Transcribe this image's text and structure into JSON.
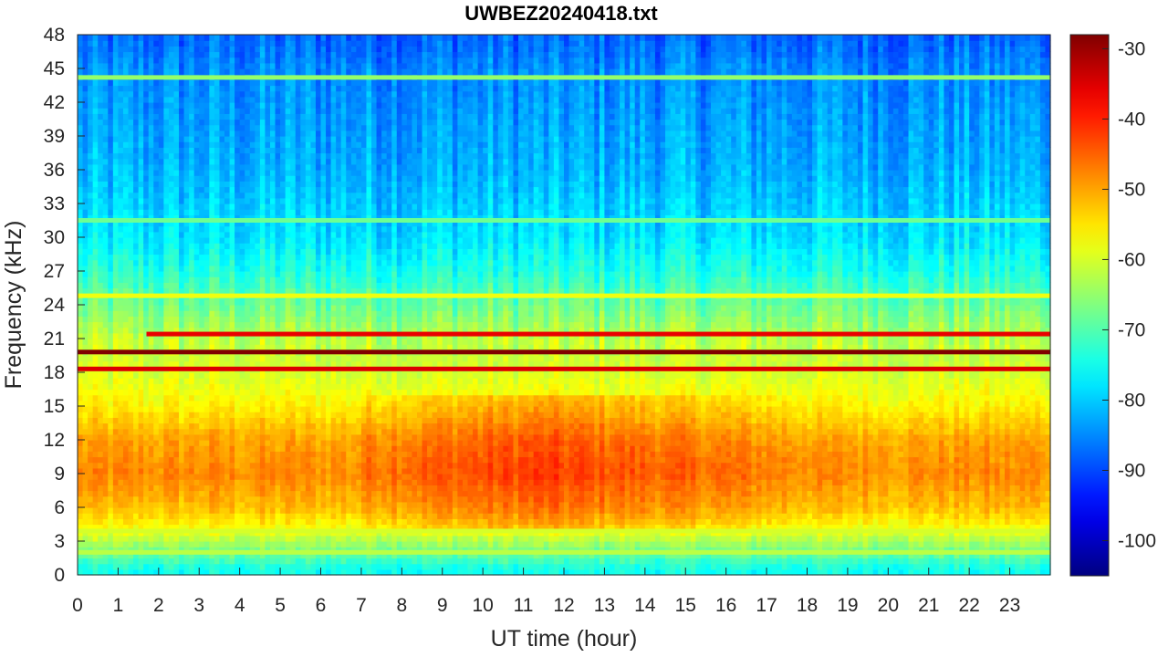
{
  "chart_data": {
    "type": "heatmap",
    "title": "UWBEZ20240418.txt",
    "xlabel": "UT time (hour)",
    "ylabel": "Frequency (kHz)",
    "xlim": [
      0,
      24
    ],
    "ylim": [
      0,
      48
    ],
    "x_ticks": [
      "0",
      "1",
      "2",
      "3",
      "4",
      "5",
      "6",
      "7",
      "8",
      "9",
      "10",
      "11",
      "12",
      "13",
      "14",
      "15",
      "16",
      "17",
      "18",
      "19",
      "20",
      "21",
      "22",
      "23"
    ],
    "y_ticks": [
      "0",
      "3",
      "6",
      "9",
      "12",
      "15",
      "18",
      "21",
      "24",
      "27",
      "30",
      "33",
      "36",
      "39",
      "42",
      "45",
      "48"
    ],
    "colorbar": {
      "colormap": "jet",
      "range": [
        -105,
        -28
      ],
      "ticks": [
        "-30",
        "-40",
        "-50",
        "-60",
        "-70",
        "-80",
        "-90",
        "-100"
      ]
    },
    "background_level_by_frequency": [
      {
        "f": 0.5,
        "level": -75
      },
      {
        "f": 2,
        "level": -68
      },
      {
        "f": 4,
        "level": -58
      },
      {
        "f": 6,
        "level": -52
      },
      {
        "f": 9,
        "level": -48
      },
      {
        "f": 12,
        "level": -50
      },
      {
        "f": 15,
        "level": -56
      },
      {
        "f": 18,
        "level": -60
      },
      {
        "f": 21,
        "level": -62
      },
      {
        "f": 24,
        "level": -68
      },
      {
        "f": 27,
        "level": -74
      },
      {
        "f": 30,
        "level": -78
      },
      {
        "f": 33,
        "level": -80
      },
      {
        "f": 36,
        "level": -82
      },
      {
        "f": 39,
        "level": -83
      },
      {
        "f": 42,
        "level": -84
      },
      {
        "f": 45,
        "level": -85
      },
      {
        "f": 48,
        "level": -88
      }
    ],
    "daytime_enhancement": {
      "start_hour": 7,
      "end_hour": 19,
      "f_low": 4,
      "f_high": 16,
      "peak_hour": 11.5,
      "delta": 6
    },
    "transmitter_lines": [
      {
        "f": 19.8,
        "level": -28
      },
      {
        "f": 18.3,
        "level": -35
      },
      {
        "f": 21.4,
        "level": -36,
        "start_hour": 1.7
      },
      {
        "f": 24.8,
        "level": -58
      },
      {
        "f": 44.2,
        "level": -65
      },
      {
        "f": 31.5,
        "level": -68
      },
      {
        "f": 3.9,
        "level": -60
      },
      {
        "f": 2.0,
        "level": -62
      }
    ]
  }
}
